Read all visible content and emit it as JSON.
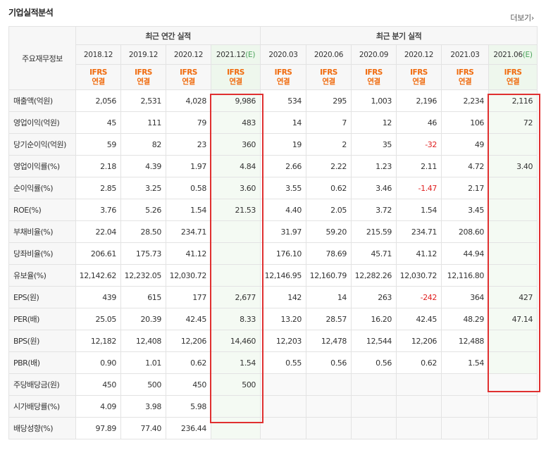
{
  "title": "기업실적분석",
  "more_label": "더보기",
  "more_arrow": "›",
  "header": {
    "corner": "주요재무정보",
    "annual_group": "최근 연간 실적",
    "quarter_group": "최근 분기 실적",
    "annual_periods": [
      "2018.12",
      "2019.12",
      "2020.12",
      "2021.12"
    ],
    "annual_estimate_suffix": "(E)",
    "quarter_periods": [
      "2020.03",
      "2020.06",
      "2020.09",
      "2020.12",
      "2021.03",
      "2021.06"
    ],
    "quarter_estimate_suffix": "(E)",
    "ifrs_line1": "IFRS",
    "ifrs_line2": "연결"
  },
  "rows": [
    {
      "label": "매출액(억원)",
      "annual": [
        "2,056",
        "2,531",
        "4,028",
        "9,986"
      ],
      "quarter": [
        "534",
        "295",
        "1,003",
        "2,196",
        "2,234",
        "2,116"
      ]
    },
    {
      "label": "영업이익(억원)",
      "annual": [
        "45",
        "111",
        "79",
        "483"
      ],
      "quarter": [
        "14",
        "7",
        "12",
        "46",
        "106",
        "72"
      ]
    },
    {
      "label": "당기순이익(억원)",
      "annual": [
        "59",
        "82",
        "23",
        "360"
      ],
      "quarter": [
        "19",
        "2",
        "35",
        "-32",
        "49",
        ""
      ]
    },
    {
      "label": "영업이익률(%)",
      "annual": [
        "2.18",
        "4.39",
        "1.97",
        "4.84"
      ],
      "quarter": [
        "2.66",
        "2.22",
        "1.23",
        "2.11",
        "4.72",
        "3.40"
      ]
    },
    {
      "label": "순이익률(%)",
      "annual": [
        "2.85",
        "3.25",
        "0.58",
        "3.60"
      ],
      "quarter": [
        "3.55",
        "0.62",
        "3.46",
        "-1.47",
        "2.17",
        ""
      ]
    },
    {
      "label": "ROE(%)",
      "annual": [
        "3.76",
        "5.26",
        "1.54",
        "21.53"
      ],
      "quarter": [
        "4.40",
        "2.05",
        "3.72",
        "1.54",
        "3.45",
        ""
      ]
    },
    {
      "label": "부채비율(%)",
      "annual": [
        "22.04",
        "28.50",
        "234.71",
        ""
      ],
      "quarter": [
        "31.97",
        "59.20",
        "215.59",
        "234.71",
        "208.60",
        ""
      ]
    },
    {
      "label": "당좌비율(%)",
      "annual": [
        "206.61",
        "175.73",
        "41.12",
        ""
      ],
      "quarter": [
        "176.10",
        "78.69",
        "45.71",
        "41.12",
        "44.94",
        ""
      ]
    },
    {
      "label": "유보율(%)",
      "annual": [
        "12,142.62",
        "12,232.05",
        "12,030.72",
        ""
      ],
      "quarter": [
        "12,146.95",
        "12,160.79",
        "12,282.26",
        "12,030.72",
        "12,116.80",
        ""
      ]
    },
    {
      "label": "EPS(원)",
      "annual": [
        "439",
        "615",
        "177",
        "2,677"
      ],
      "quarter": [
        "142",
        "14",
        "263",
        "-242",
        "364",
        "427"
      ]
    },
    {
      "label": "PER(배)",
      "annual": [
        "25.05",
        "20.39",
        "42.45",
        "8.33"
      ],
      "quarter": [
        "13.20",
        "28.57",
        "16.20",
        "42.45",
        "48.29",
        "47.14"
      ]
    },
    {
      "label": "BPS(원)",
      "annual": [
        "12,182",
        "12,408",
        "12,206",
        "14,460"
      ],
      "quarter": [
        "12,203",
        "12,478",
        "12,544",
        "12,206",
        "12,488",
        ""
      ]
    },
    {
      "label": "PBR(배)",
      "annual": [
        "0.90",
        "1.01",
        "0.62",
        "1.54"
      ],
      "quarter": [
        "0.55",
        "0.56",
        "0.56",
        "0.62",
        "1.54",
        ""
      ]
    },
    {
      "label": "주당배당금(원)",
      "annual": [
        "450",
        "500",
        "450",
        "500"
      ],
      "quarter": [
        "",
        "",
        "",
        "",
        "",
        ""
      ]
    },
    {
      "label": "시가배당률(%)",
      "annual": [
        "4.09",
        "3.98",
        "5.98",
        ""
      ],
      "quarter": [
        "",
        "",
        "",
        "",
        "",
        ""
      ]
    },
    {
      "label": "배당성향(%)",
      "annual": [
        "97.89",
        "77.40",
        "236.44",
        ""
      ],
      "quarter": [
        "",
        "",
        "",
        "",
        "",
        ""
      ]
    }
  ],
  "colors": {
    "ifrs": "#f06b0e",
    "estimate_bg": "#f4faf3",
    "highlight_box": "#e03030",
    "negative": "#e02020"
  }
}
